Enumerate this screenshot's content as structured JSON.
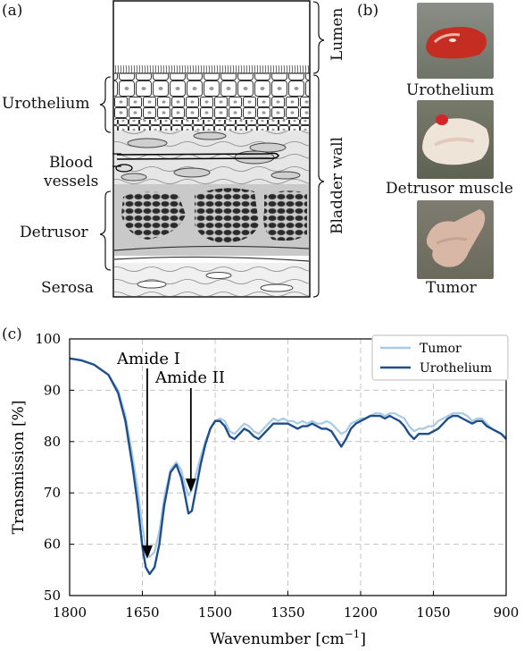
{
  "panels": {
    "a": "(a)",
    "b": "(b)",
    "c": "(c)"
  },
  "diagram": {
    "layers_left": [
      "Urothelium",
      "Blood",
      "vessels",
      "Detrusor",
      "Serosa"
    ],
    "layers_right": [
      "Lumen",
      "Bladder wall"
    ]
  },
  "photos": {
    "urothelium": "Urothelium",
    "detrusor": "Detrusor muscle",
    "tumor": "Tumor"
  },
  "chart_data": {
    "type": "line",
    "xlabel": "Wavenumber [cm",
    "xlabel_sup": "−1",
    "ylabel": "Transmission [%]",
    "xlim": [
      1800,
      900
    ],
    "ylim": [
      50,
      100
    ],
    "xticks": [
      1800,
      1650,
      1500,
      1350,
      1200,
      1050,
      900
    ],
    "yticks": [
      50,
      60,
      70,
      80,
      90,
      100
    ],
    "grid": true,
    "legend": "top-right",
    "annotations": [
      {
        "text": "Amide I",
        "x": 1640,
        "y": 57
      },
      {
        "text": "Amide II",
        "x": 1550,
        "y": 70
      }
    ],
    "series": [
      {
        "name": "Tumor",
        "color": "#a6cbe3",
        "x": [
          1800,
          1775,
          1750,
          1720,
          1700,
          1685,
          1670,
          1660,
          1650,
          1643,
          1635,
          1625,
          1615,
          1605,
          1592,
          1580,
          1570,
          1562,
          1555,
          1548,
          1540,
          1530,
          1520,
          1510,
          1500,
          1490,
          1480,
          1470,
          1460,
          1450,
          1440,
          1430,
          1420,
          1410,
          1400,
          1390,
          1380,
          1370,
          1360,
          1350,
          1340,
          1330,
          1320,
          1310,
          1300,
          1290,
          1280,
          1270,
          1260,
          1250,
          1240,
          1230,
          1220,
          1210,
          1200,
          1190,
          1180,
          1170,
          1160,
          1150,
          1140,
          1130,
          1120,
          1110,
          1100,
          1090,
          1080,
          1070,
          1060,
          1050,
          1040,
          1030,
          1020,
          1010,
          1000,
          990,
          980,
          970,
          960,
          950,
          940,
          930,
          920,
          910,
          900
        ],
        "y": [
          96.2,
          95.8,
          95.0,
          93.0,
          90.0,
          85.0,
          77.0,
          71.0,
          63.5,
          59.5,
          57.5,
          58.5,
          62.5,
          69.0,
          74.5,
          76.0,
          74.5,
          71.5,
          69.5,
          70.5,
          73.5,
          77.0,
          80.0,
          82.5,
          84.0,
          84.5,
          84.0,
          82.0,
          81.5,
          82.5,
          83.5,
          83.0,
          82.0,
          81.5,
          82.5,
          83.5,
          84.5,
          84.0,
          84.5,
          84.0,
          84.0,
          83.5,
          84.0,
          83.5,
          84.0,
          83.5,
          83.5,
          84.0,
          83.5,
          82.5,
          81.5,
          82.0,
          83.5,
          84.0,
          84.5,
          84.5,
          85.0,
          85.5,
          85.5,
          85.0,
          85.5,
          85.5,
          85.0,
          84.5,
          83.0,
          82.0,
          82.5,
          82.5,
          83.0,
          83.0,
          84.0,
          84.5,
          85.0,
          85.5,
          85.5,
          85.5,
          85.0,
          84.0,
          84.5,
          84.5,
          83.5,
          82.5,
          82.0,
          81.5,
          80.8
        ]
      },
      {
        "name": "Urothelium",
        "color": "#1f4e8c",
        "x": [
          1800,
          1775,
          1750,
          1720,
          1700,
          1685,
          1670,
          1660,
          1650,
          1643,
          1635,
          1625,
          1615,
          1605,
          1592,
          1580,
          1570,
          1562,
          1555,
          1548,
          1540,
          1530,
          1520,
          1510,
          1500,
          1490,
          1480,
          1470,
          1460,
          1450,
          1440,
          1430,
          1420,
          1410,
          1400,
          1390,
          1380,
          1370,
          1360,
          1350,
          1340,
          1330,
          1320,
          1310,
          1300,
          1290,
          1280,
          1270,
          1260,
          1250,
          1240,
          1230,
          1220,
          1210,
          1200,
          1190,
          1180,
          1170,
          1160,
          1150,
          1140,
          1130,
          1120,
          1110,
          1100,
          1090,
          1080,
          1070,
          1060,
          1050,
          1040,
          1030,
          1020,
          1010,
          1000,
          990,
          980,
          970,
          960,
          950,
          940,
          930,
          920,
          910,
          900
        ],
        "y": [
          96.2,
          95.8,
          95.0,
          93.0,
          89.5,
          84.0,
          75.0,
          68.0,
          59.5,
          55.5,
          54.2,
          55.5,
          60.0,
          67.5,
          74.0,
          75.5,
          73.0,
          69.5,
          66.0,
          66.5,
          70.5,
          75.5,
          79.5,
          82.5,
          84.0,
          84.0,
          83.0,
          81.0,
          80.5,
          81.5,
          82.5,
          82.0,
          81.0,
          80.5,
          81.5,
          82.5,
          83.5,
          83.5,
          83.5,
          83.5,
          83.0,
          82.5,
          83.0,
          83.0,
          83.5,
          83.0,
          82.5,
          82.5,
          82.0,
          80.5,
          79.0,
          80.5,
          82.5,
          83.5,
          84.0,
          84.5,
          85.0,
          85.0,
          85.0,
          84.5,
          85.0,
          84.5,
          84.0,
          83.0,
          81.5,
          80.5,
          81.5,
          81.5,
          81.5,
          82.0,
          82.5,
          83.5,
          84.5,
          85.0,
          85.0,
          84.5,
          84.0,
          83.5,
          84.0,
          84.0,
          83.0,
          82.5,
          82.0,
          81.5,
          80.5
        ]
      }
    ]
  }
}
